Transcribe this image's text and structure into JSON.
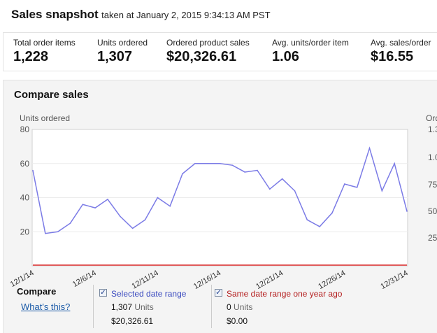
{
  "snapshot": {
    "title": "Sales snapshot",
    "taken_at": "taken at January 2, 2015 9:34:13 AM PST"
  },
  "metrics": [
    {
      "label": "Total order items",
      "value": "1,228"
    },
    {
      "label": "Units ordered",
      "value": "1,307"
    },
    {
      "label": "Ordered product sales",
      "value": "$20,326.61"
    },
    {
      "label": "Avg. units/order item",
      "value": "1.06"
    },
    {
      "label": "Avg. sales/order",
      "value": "$16.55"
    }
  ],
  "compare": {
    "title": "Compare sales",
    "compare_label": "Compare",
    "whats_this": "What's this?",
    "selected": {
      "label": "Selected date range",
      "units": "1,307",
      "units_label": "Units",
      "sales": "$20,326.61",
      "checked": true
    },
    "previous": {
      "label": "Same date range one year ago",
      "units": "0",
      "units_label": "Units",
      "sales": "$0.00",
      "checked": true
    }
  },
  "colors": {
    "selected": "#7b7be6",
    "previous": "#e05a5a",
    "link": "#1a5aa8"
  },
  "chart_data": {
    "type": "line",
    "ylabel_left": "Units ordered",
    "ylabel_right": "Ord",
    "ylim": [
      0,
      80
    ],
    "y_ticks_left": [
      "80",
      "60",
      "40",
      "20"
    ],
    "y_ticks_right": [
      "1.3",
      "1.0",
      "75",
      "50",
      "25"
    ],
    "x_tick_labels": [
      "12/1/14",
      "12/6/14",
      "12/11/14",
      "12/16/14",
      "12/21/14",
      "12/26/14",
      "12/31/14"
    ],
    "x": [
      "12/1",
      "12/2",
      "12/3",
      "12/4",
      "12/5",
      "12/6",
      "12/7",
      "12/8",
      "12/9",
      "12/10",
      "12/11",
      "12/12",
      "12/13",
      "12/14",
      "12/15",
      "12/16",
      "12/17",
      "12/18",
      "12/19",
      "12/20",
      "12/21",
      "12/22",
      "12/23",
      "12/24",
      "12/25",
      "12/26",
      "12/27",
      "12/28",
      "12/29",
      "12/30",
      "12/31"
    ],
    "series": [
      {
        "name": "Selected date range",
        "values": [
          56,
          19,
          20,
          25,
          36,
          34,
          39,
          29,
          22,
          27,
          40,
          35,
          54,
          60,
          60,
          60,
          59,
          55,
          56,
          45,
          51,
          44,
          27,
          23,
          31,
          48,
          46,
          69,
          44,
          60,
          32
        ]
      },
      {
        "name": "Same date range one year ago",
        "values": [
          0,
          0,
          0,
          0,
          0,
          0,
          0,
          0,
          0,
          0,
          0,
          0,
          0,
          0,
          0,
          0,
          0,
          0,
          0,
          0,
          0,
          0,
          0,
          0,
          0,
          0,
          0,
          0,
          0,
          0,
          0
        ]
      }
    ],
    "grid": true
  }
}
